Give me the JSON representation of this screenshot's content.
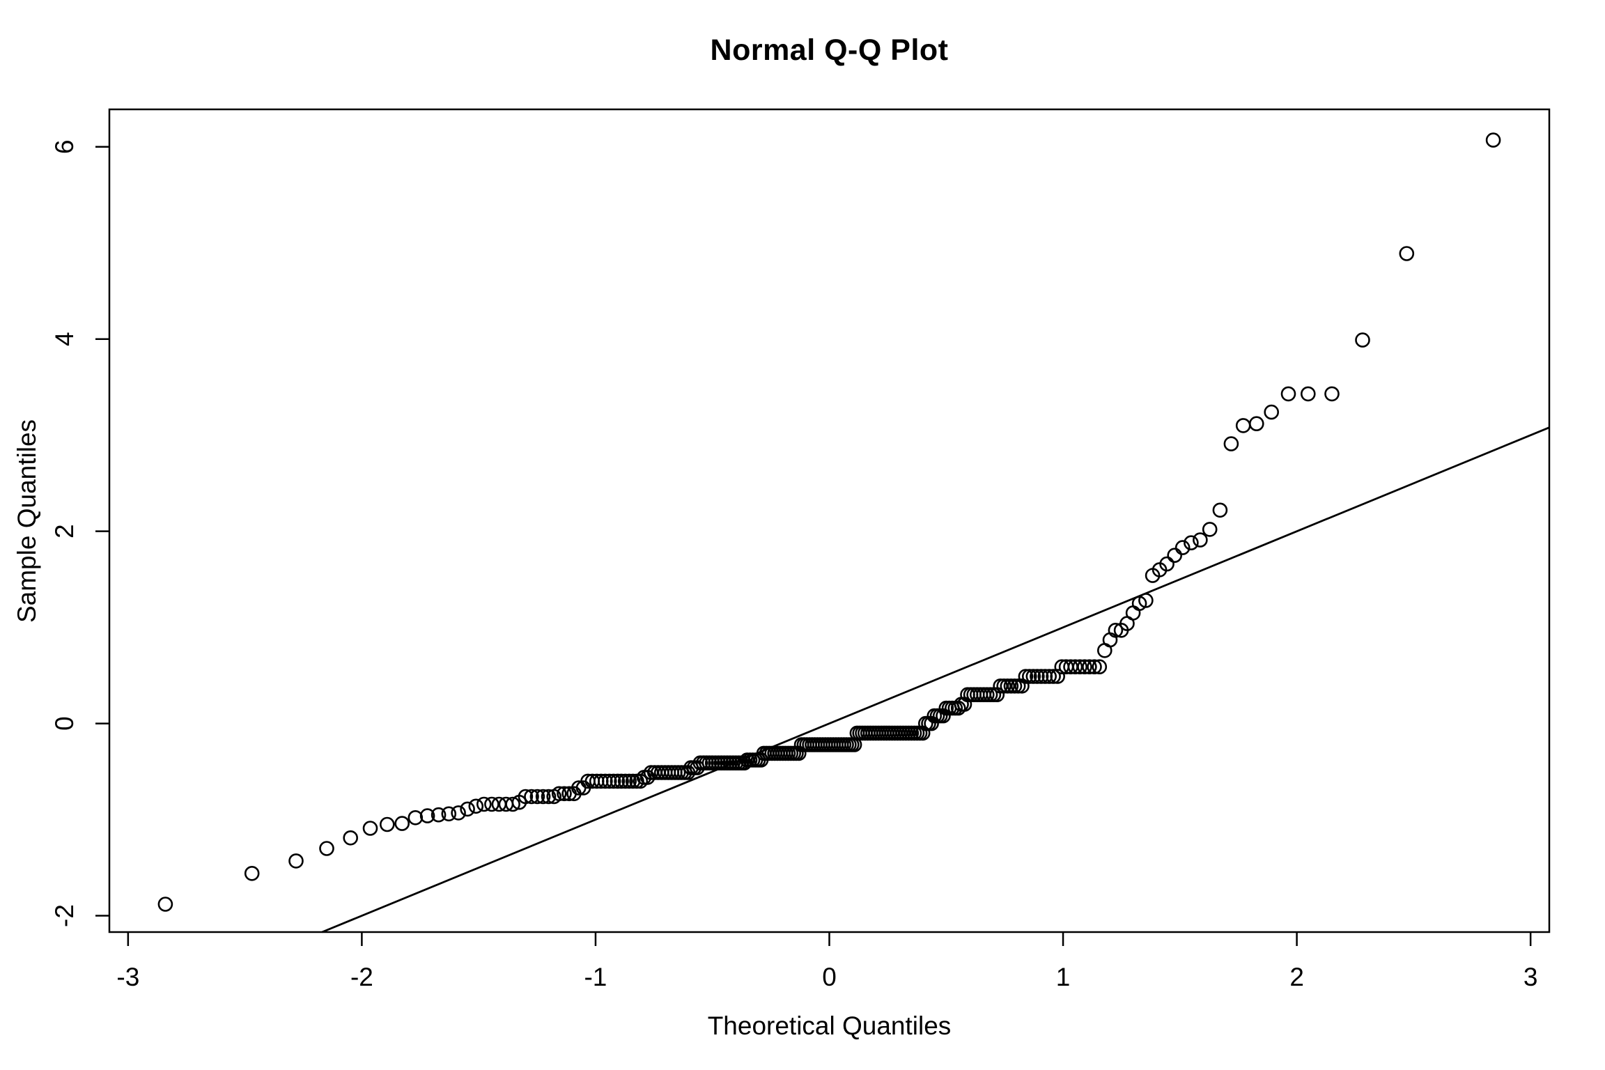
{
  "chart_data": {
    "type": "scatter",
    "subtype": "normal-qq-plot",
    "title": "Normal Q-Q Plot",
    "xlabel": "Theoretical Quantiles",
    "ylabel": "Sample Quantiles",
    "xlim": [
      -3.08,
      3.08
    ],
    "ylim": [
      -2.17,
      6.39
    ],
    "x_ticks": [
      -3,
      -2,
      -1,
      0,
      1,
      2,
      3
    ],
    "y_ticks": [
      -2,
      0,
      2,
      4,
      6
    ],
    "grid": false,
    "legend": null,
    "n": 222,
    "theoretical_quantiles_rule": "qnorm((i - 0.5) / n) for i = 1..n (standard normal quantiles of the sorted sample)",
    "sample_sorted_runs": [
      [
        -1.88,
        1
      ],
      [
        -1.56,
        1
      ],
      [
        -1.43,
        1
      ],
      [
        -1.3,
        1
      ],
      [
        -1.19,
        1
      ],
      [
        -1.09,
        1
      ],
      [
        -1.05,
        1
      ],
      [
        -1.04,
        1
      ],
      [
        -0.98,
        1
      ],
      [
        -0.96,
        1
      ],
      [
        -0.95,
        1
      ],
      [
        -0.94,
        1
      ],
      [
        -0.93,
        1
      ],
      [
        -0.89,
        1
      ],
      [
        -0.86,
        1
      ],
      [
        -0.84,
        5
      ],
      [
        -0.82,
        1
      ],
      [
        -0.76,
        6
      ],
      [
        -0.73,
        4
      ],
      [
        -0.67,
        2
      ],
      [
        -0.6,
        14
      ],
      [
        -0.56,
        2
      ],
      [
        -0.51,
        12
      ],
      [
        -0.46,
        3
      ],
      [
        -0.41,
        16
      ],
      [
        -0.38,
        6
      ],
      [
        -0.31,
        14
      ],
      [
        -0.22,
        21
      ],
      [
        -0.1,
        25
      ],
      [
        0.0,
        3
      ],
      [
        0.08,
        4
      ],
      [
        0.16,
        5
      ],
      [
        0.2,
        2
      ],
      [
        0.3,
        10
      ],
      [
        0.39,
        7
      ],
      [
        0.49,
        9
      ],
      [
        0.59,
        9
      ],
      [
        0.76,
        1
      ],
      [
        0.87,
        1
      ],
      [
        0.97,
        2
      ],
      [
        1.04,
        1
      ],
      [
        1.15,
        1
      ],
      [
        1.25,
        1
      ],
      [
        1.28,
        1
      ],
      [
        1.54,
        1
      ],
      [
        1.6,
        1
      ],
      [
        1.66,
        1
      ],
      [
        1.75,
        1
      ],
      [
        1.83,
        1
      ],
      [
        1.88,
        1
      ],
      [
        1.91,
        1
      ],
      [
        2.02,
        1
      ],
      [
        2.22,
        1
      ],
      [
        2.91,
        1
      ],
      [
        3.1,
        1
      ],
      [
        3.12,
        1
      ],
      [
        3.24,
        1
      ],
      [
        3.43,
        3
      ],
      [
        3.99,
        1
      ],
      [
        4.89,
        1
      ],
      [
        6.07,
        1
      ]
    ],
    "reference_line": {
      "slope": 1,
      "intercept": 0,
      "clipped_to_plot_region": true
    },
    "marker": {
      "shape": "open-circle",
      "radius_px": 9.5,
      "color": "#000000"
    },
    "line_color": "#000000",
    "axis_color": "#000000",
    "background": "#ffffff"
  }
}
